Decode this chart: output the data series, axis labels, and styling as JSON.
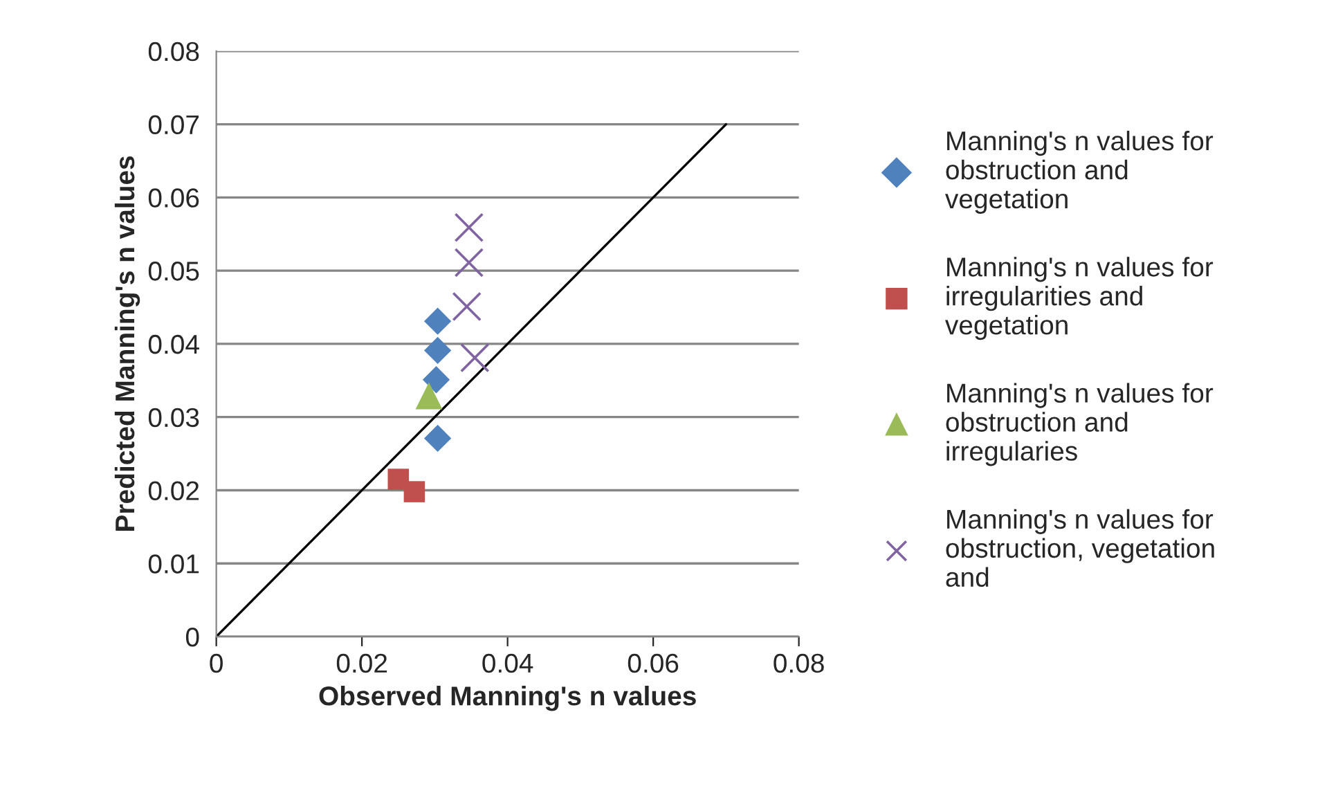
{
  "chart_data": {
    "type": "scatter",
    "xlabel": "Observed Manning's n values",
    "ylabel": "Predicted Manning's n values",
    "xlim": [
      0,
      0.08
    ],
    "xticks": [
      0,
      0.02,
      0.04,
      0.06,
      0.08
    ],
    "ylim": [
      0,
      0.08
    ],
    "yticks": [
      0,
      0.01,
      0.02,
      0.03,
      0.04,
      0.05,
      0.06,
      0.07,
      0.08
    ],
    "grid": "y",
    "legend": "right",
    "series": [
      {
        "name": "Manning's n values for obstruction and vegetation",
        "color": "#4f81bd",
        "marker": "diamond",
        "x": [
          0.0304,
          0.0304,
          0.0302,
          0.0304
        ],
        "values": [
          0.0431,
          0.0391,
          0.0351,
          0.0271
        ]
      },
      {
        "name": "Manning's n values for irregularities and vegetation",
        "color": "#c0504d",
        "marker": "square",
        "x": [
          0.025,
          0.0272
        ],
        "values": [
          0.0215,
          0.0198
        ]
      },
      {
        "name": "Manning's n values for obstruction and irregularies",
        "color": "#9bbb59",
        "marker": "triangle",
        "x": [
          0.0292
        ],
        "values": [
          0.0329
        ]
      },
      {
        "name": "Manning's n values for obstruction, vegetation and",
        "color": "#8064a2",
        "marker": "cross",
        "x": [
          0.0347,
          0.0347,
          0.0344,
          0.0355
        ],
        "values": [
          0.0559,
          0.0511,
          0.0451,
          0.0381
        ]
      },
      {
        "type": "line",
        "color": "#000000",
        "marker": "none",
        "x": [
          0,
          0.07
        ],
        "values": [
          0,
          0.07
        ]
      }
    ]
  }
}
